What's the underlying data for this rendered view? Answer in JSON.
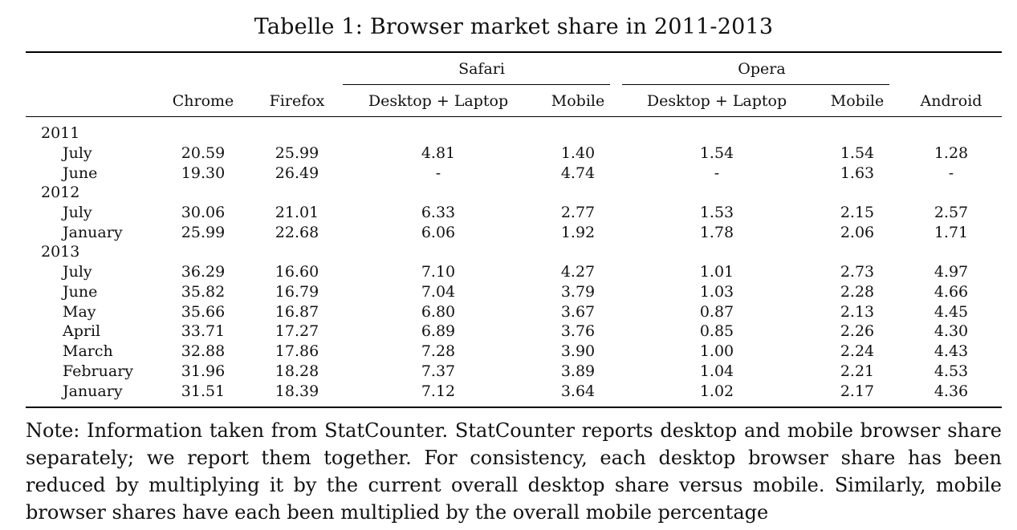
{
  "caption": "Tabelle 1: Browser market share in 2011-2013",
  "groups": {
    "safari": "Safari",
    "opera": "Opera"
  },
  "columns": [
    "Chrome",
    "Firefox",
    "Desktop + Laptop",
    "Mobile",
    "Desktop + Laptop",
    "Mobile",
    "Android"
  ],
  "years": [
    "2011",
    "2012",
    "2013"
  ],
  "rows": [
    {
      "label": "July",
      "values": [
        "20.59",
        "25.99",
        "4.81",
        "1.40",
        "1.54",
        "1.54",
        "1.28"
      ]
    },
    {
      "label": "June",
      "values": [
        "19.30",
        "26.49",
        "-",
        "4.74",
        "-",
        "1.63",
        "-"
      ]
    },
    {
      "label": "July",
      "values": [
        "30.06",
        "21.01",
        "6.33",
        "2.77",
        "1.53",
        "2.15",
        "2.57"
      ]
    },
    {
      "label": "January",
      "values": [
        "25.99",
        "22.68",
        "6.06",
        "1.92",
        "1.78",
        "2.06",
        "1.71"
      ]
    },
    {
      "label": "July",
      "values": [
        "36.29",
        "16.60",
        "7.10",
        "4.27",
        "1.01",
        "2.73",
        "4.97"
      ]
    },
    {
      "label": "June",
      "values": [
        "35.82",
        "16.79",
        "7.04",
        "3.79",
        "1.03",
        "2.28",
        "4.66"
      ]
    },
    {
      "label": "May",
      "values": [
        "35.66",
        "16.87",
        "6.80",
        "3.67",
        "0.87",
        "2.13",
        "4.45"
      ]
    },
    {
      "label": "April",
      "values": [
        "33.71",
        "17.27",
        "6.89",
        "3.76",
        "0.85",
        "2.26",
        "4.30"
      ]
    },
    {
      "label": "March",
      "values": [
        "32.88",
        "17.86",
        "7.28",
        "3.90",
        "1.00",
        "2.24",
        "4.43"
      ]
    },
    {
      "label": "February",
      "values": [
        "31.96",
        "18.28",
        "7.37",
        "3.89",
        "1.04",
        "2.21",
        "4.53"
      ]
    },
    {
      "label": "January",
      "values": [
        "31.51",
        "18.39",
        "7.12",
        "3.64",
        "1.02",
        "2.17",
        "4.36"
      ]
    }
  ],
  "note": "Note: Information taken from StatCounter. StatCounter reports desktop and mobile browser share separately; we report them together. For consistency, each desktop browser share has been reduced by multiplying it by the current overall desktop share versus mobile. Similarly, mobile browser shares have each been multiplied by the overall mobile percentage"
}
